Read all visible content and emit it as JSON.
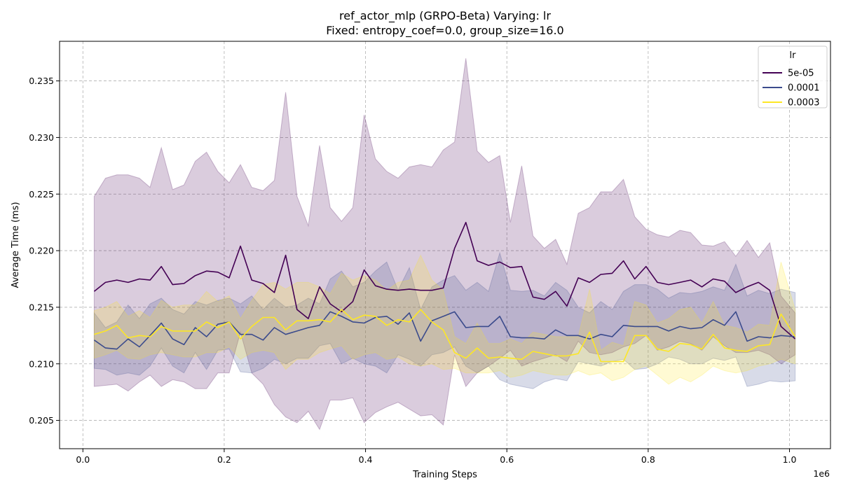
{
  "chart_data": {
    "type": "line",
    "title": "ref_actor_mlp (GRPO-Beta) Varying: lr",
    "subtitle": "Fixed: entropy_coef=0.0, group_size=16.0",
    "xlabel": "Training Steps",
    "ylabel": "Average Time (ms)",
    "x_offset_label": "1e6",
    "xlim": [
      -0.033,
      1.058
    ],
    "ylim": [
      0.2025,
      0.2385
    ],
    "x_ticks": [
      0.0,
      0.2,
      0.4,
      0.6,
      0.8,
      1.0
    ],
    "x_tick_labels": [
      "0.0",
      "0.2",
      "0.4",
      "0.6",
      "0.8",
      "1.0"
    ],
    "y_ticks": [
      0.205,
      0.21,
      0.215,
      0.22,
      0.225,
      0.23,
      0.235
    ],
    "y_tick_labels": [
      "0.205",
      "0.210",
      "0.215",
      "0.220",
      "0.225",
      "0.230",
      "0.235"
    ],
    "grid": true,
    "legend": {
      "title": "lr",
      "position": "top-right"
    },
    "x": [
      0.016,
      0.032,
      0.048,
      0.064,
      0.08,
      0.095,
      0.111,
      0.127,
      0.143,
      0.159,
      0.175,
      0.191,
      0.207,
      0.223,
      0.239,
      0.255,
      0.271,
      0.287,
      0.303,
      0.319,
      0.335,
      0.35,
      0.366,
      0.382,
      0.398,
      0.414,
      0.43,
      0.446,
      0.462,
      0.478,
      0.494,
      0.51,
      0.526,
      0.542,
      0.558,
      0.574,
      0.59,
      0.605,
      0.621,
      0.637,
      0.653,
      0.669,
      0.685,
      0.701,
      0.717,
      0.733,
      0.749,
      0.765,
      0.781,
      0.797,
      0.813,
      0.829,
      0.845,
      0.86,
      0.876,
      0.892,
      0.908,
      0.924,
      0.94,
      0.956,
      0.972,
      0.988,
      1.008
    ],
    "series": [
      {
        "name": "5e-05",
        "color": "#440154",
        "values": [
          0.2164,
          0.2172,
          0.2174,
          0.2172,
          0.2175,
          0.2174,
          0.2186,
          0.217,
          0.2171,
          0.2178,
          0.2182,
          0.2181,
          0.2176,
          0.2204,
          0.2174,
          0.2171,
          0.2163,
          0.2196,
          0.2148,
          0.214,
          0.2168,
          0.2153,
          0.2146,
          0.2155,
          0.2183,
          0.2169,
          0.2166,
          0.2165,
          0.2166,
          0.2165,
          0.2165,
          0.2167,
          0.2202,
          0.2225,
          0.2191,
          0.2187,
          0.219,
          0.2185,
          0.2186,
          0.2159,
          0.2157,
          0.2164,
          0.2151,
          0.2176,
          0.2172,
          0.2179,
          0.218,
          0.2191,
          0.2175,
          0.2186,
          0.2172,
          0.217,
          0.2172,
          0.2174,
          0.2168,
          0.2175,
          0.2173,
          0.2163,
          0.2168,
          0.2172,
          0.2165,
          0.2133,
          0.2122
        ],
        "lower": [
          0.208,
          0.2081,
          0.2082,
          0.2076,
          0.2084,
          0.209,
          0.208,
          0.2086,
          0.2084,
          0.2078,
          0.2078,
          0.2092,
          0.2092,
          0.2128,
          0.2092,
          0.2082,
          0.2064,
          0.2053,
          0.2048,
          0.2058,
          0.2042,
          0.2068,
          0.2068,
          0.207,
          0.2048,
          0.2057,
          0.2062,
          0.2066,
          0.206,
          0.2054,
          0.2055,
          0.2046,
          0.2108,
          0.208,
          0.2092,
          0.2098,
          0.2105,
          0.2112,
          0.2098,
          0.2102,
          0.2105,
          0.2108,
          0.2102,
          0.212,
          0.211,
          0.2108,
          0.211,
          0.2115,
          0.2118,
          0.2125,
          0.2112,
          0.2115,
          0.212,
          0.2118,
          0.2112,
          0.2124,
          0.2116,
          0.211,
          0.211,
          0.2112,
          0.2108,
          0.21,
          0.2108
        ],
        "upper": [
          0.2248,
          0.2264,
          0.2267,
          0.2267,
          0.2264,
          0.2256,
          0.2291,
          0.2254,
          0.2258,
          0.2279,
          0.2287,
          0.227,
          0.226,
          0.2276,
          0.2256,
          0.2253,
          0.2262,
          0.234,
          0.2248,
          0.2222,
          0.2293,
          0.2238,
          0.2226,
          0.2238,
          0.232,
          0.2281,
          0.227,
          0.2264,
          0.2274,
          0.2276,
          0.2274,
          0.2289,
          0.2296,
          0.237,
          0.2288,
          0.2278,
          0.2284,
          0.2225,
          0.2275,
          0.2213,
          0.2202,
          0.221,
          0.2188,
          0.2233,
          0.2238,
          0.2252,
          0.2252,
          0.2263,
          0.223,
          0.2219,
          0.2214,
          0.2212,
          0.2218,
          0.2216,
          0.2205,
          0.2204,
          0.2208,
          0.2195,
          0.2209,
          0.2194,
          0.2207,
          0.216,
          0.2145
        ]
      },
      {
        "name": "0.0001",
        "color": "#3b4b8c",
        "values": [
          0.2121,
          0.2114,
          0.2113,
          0.2122,
          0.2115,
          0.2125,
          0.2136,
          0.2122,
          0.2117,
          0.2132,
          0.2124,
          0.2135,
          0.2137,
          0.2126,
          0.2126,
          0.2121,
          0.2132,
          0.2126,
          0.2129,
          0.2132,
          0.2134,
          0.2146,
          0.2142,
          0.2137,
          0.2136,
          0.2141,
          0.2142,
          0.2135,
          0.2145,
          0.212,
          0.2138,
          0.2142,
          0.2146,
          0.2132,
          0.2133,
          0.2133,
          0.2142,
          0.2124,
          0.2123,
          0.2123,
          0.2122,
          0.213,
          0.2125,
          0.2125,
          0.2122,
          0.2126,
          0.2124,
          0.2134,
          0.2133,
          0.2133,
          0.2133,
          0.2129,
          0.2133,
          0.2131,
          0.2132,
          0.2139,
          0.2134,
          0.2146,
          0.212,
          0.2124,
          0.2123,
          0.2125,
          0.2124
        ],
        "lower": [
          0.2096,
          0.2095,
          0.209,
          0.2092,
          0.209,
          0.2098,
          0.2114,
          0.2098,
          0.2092,
          0.211,
          0.2095,
          0.2112,
          0.2113,
          0.2093,
          0.2092,
          0.2096,
          0.2104,
          0.21,
          0.2105,
          0.2105,
          0.2116,
          0.2118,
          0.21,
          0.2105,
          0.21,
          0.2098,
          0.2092,
          0.2108,
          0.2104,
          0.2098,
          0.2108,
          0.211,
          0.2115,
          0.2098,
          0.2092,
          0.2098,
          0.2086,
          0.2082,
          0.208,
          0.2078,
          0.2084,
          0.2087,
          0.2085,
          0.2102,
          0.21,
          0.2098,
          0.2102,
          0.2104,
          0.2095,
          0.2096,
          0.21,
          0.2106,
          0.2104,
          0.21,
          0.21,
          0.2105,
          0.2103,
          0.2106,
          0.208,
          0.2082,
          0.2085,
          0.2084,
          0.2085
        ],
        "upper": [
          0.2145,
          0.2132,
          0.2137,
          0.2152,
          0.214,
          0.2153,
          0.2158,
          0.2148,
          0.2144,
          0.2155,
          0.2152,
          0.2156,
          0.2158,
          0.2153,
          0.216,
          0.2148,
          0.2158,
          0.215,
          0.2152,
          0.2158,
          0.2153,
          0.2175,
          0.2182,
          0.2168,
          0.2172,
          0.2182,
          0.219,
          0.2165,
          0.2185,
          0.2148,
          0.2168,
          0.2174,
          0.2178,
          0.2165,
          0.2172,
          0.2164,
          0.2198,
          0.2165,
          0.2164,
          0.2165,
          0.216,
          0.2172,
          0.2165,
          0.215,
          0.2145,
          0.2155,
          0.2148,
          0.2164,
          0.217,
          0.217,
          0.2166,
          0.2158,
          0.2163,
          0.2162,
          0.2164,
          0.2168,
          0.2165,
          0.2188,
          0.216,
          0.2165,
          0.2162,
          0.2166,
          0.2163
        ]
      },
      {
        "name": "0.0003",
        "color": "#fde725",
        "values": [
          0.2126,
          0.2129,
          0.2134,
          0.2123,
          0.2125,
          0.2124,
          0.2133,
          0.2129,
          0.2129,
          0.2129,
          0.2137,
          0.2132,
          0.2137,
          0.2122,
          0.2133,
          0.2141,
          0.2141,
          0.213,
          0.2138,
          0.2138,
          0.2139,
          0.2137,
          0.2148,
          0.2139,
          0.2143,
          0.2142,
          0.2134,
          0.2139,
          0.2137,
          0.2148,
          0.2137,
          0.213,
          0.211,
          0.2105,
          0.2114,
          0.2105,
          0.2106,
          0.2105,
          0.2104,
          0.2111,
          0.2109,
          0.2107,
          0.2107,
          0.2109,
          0.2128,
          0.2102,
          0.2102,
          0.2102,
          0.2125,
          0.2125,
          0.2113,
          0.2111,
          0.2118,
          0.2117,
          0.2113,
          0.2126,
          0.2114,
          0.2112,
          0.2111,
          0.2116,
          0.2117,
          0.2144,
          0.2124
        ],
        "lower": [
          0.2105,
          0.2108,
          0.2112,
          0.2105,
          0.2104,
          0.2108,
          0.211,
          0.2108,
          0.2106,
          0.2106,
          0.211,
          0.211,
          0.2115,
          0.2104,
          0.211,
          0.2112,
          0.211,
          0.2095,
          0.2104,
          0.2104,
          0.211,
          0.2113,
          0.2116,
          0.2104,
          0.2108,
          0.211,
          0.2104,
          0.2106,
          0.21,
          0.2098,
          0.21,
          0.2095,
          0.2096,
          0.2092,
          0.2092,
          0.2092,
          0.2094,
          0.2088,
          0.209,
          0.2094,
          0.2092,
          0.209,
          0.209,
          0.2094,
          0.209,
          0.2092,
          0.2085,
          0.2088,
          0.2095,
          0.2098,
          0.209,
          0.2082,
          0.2088,
          0.2084,
          0.209,
          0.2098,
          0.2094,
          0.2092,
          0.2094,
          0.2098,
          0.21,
          0.2104,
          0.21
        ],
        "upper": [
          0.2147,
          0.215,
          0.2155,
          0.2142,
          0.2147,
          0.2141,
          0.2156,
          0.215,
          0.2152,
          0.2152,
          0.2164,
          0.2155,
          0.216,
          0.214,
          0.2156,
          0.217,
          0.2172,
          0.2166,
          0.2172,
          0.2172,
          0.2168,
          0.2162,
          0.218,
          0.2174,
          0.2178,
          0.2174,
          0.2165,
          0.2172,
          0.2174,
          0.2196,
          0.2174,
          0.2165,
          0.2124,
          0.2118,
          0.2136,
          0.2118,
          0.2118,
          0.2122,
          0.2118,
          0.2128,
          0.2126,
          0.2124,
          0.2124,
          0.2124,
          0.2166,
          0.2112,
          0.2119,
          0.2116,
          0.2155,
          0.2152,
          0.2136,
          0.214,
          0.2148,
          0.215,
          0.2136,
          0.2155,
          0.2134,
          0.2132,
          0.2128,
          0.2135,
          0.2134,
          0.219,
          0.2148
        ]
      }
    ]
  }
}
